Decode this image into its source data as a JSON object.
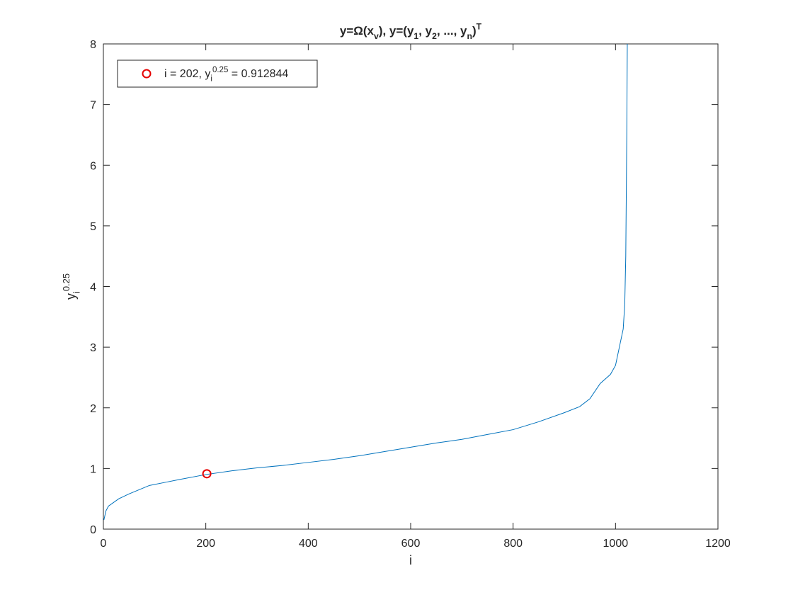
{
  "chart_data": {
    "type": "line",
    "title": [
      {
        "text": "y=Ω(x"
      },
      {
        "text": "v",
        "script": "sub"
      },
      {
        "text": "), y=(y"
      },
      {
        "text": "1",
        "script": "sub"
      },
      {
        "text": ", y"
      },
      {
        "text": "2",
        "script": "sub"
      },
      {
        "text": ", ..., y"
      },
      {
        "text": "n",
        "script": "sub"
      },
      {
        "text": ")"
      },
      {
        "text": "T",
        "script": "sup"
      }
    ],
    "x_label": [
      {
        "text": "i"
      }
    ],
    "y_label": [
      {
        "text": "y"
      },
      {
        "text": "i",
        "script": "sub"
      },
      {
        "text": "0.25",
        "script": "sup"
      }
    ],
    "xlim": [
      0,
      1200
    ],
    "ylim": [
      0,
      8
    ],
    "xticks": [
      0,
      200,
      400,
      600,
      800,
      1000,
      1200
    ],
    "yticks": [
      0,
      1,
      2,
      3,
      4,
      5,
      6,
      7,
      8
    ],
    "legend": "upper left",
    "series": [
      {
        "color": "#0072bd",
        "x": [
          1,
          5,
          10,
          20,
          30,
          50,
          70,
          90,
          120,
          150,
          200,
          250,
          300,
          350,
          400,
          450,
          500,
          550,
          600,
          650,
          700,
          750,
          800,
          850,
          900,
          930,
          950,
          970,
          990,
          1000,
          1005,
          1010,
          1015,
          1018,
          1020,
          1021,
          1022,
          1023
        ],
        "values": [
          0.15,
          0.3,
          0.38,
          0.44,
          0.5,
          0.58,
          0.65,
          0.72,
          0.77,
          0.82,
          0.9,
          0.96,
          1.01,
          1.05,
          1.1,
          1.15,
          1.21,
          1.28,
          1.35,
          1.42,
          1.48,
          1.56,
          1.64,
          1.77,
          1.92,
          2.02,
          2.15,
          2.4,
          2.55,
          2.7,
          2.9,
          3.1,
          3.3,
          3.7,
          4.5,
          5.5,
          6.5,
          8
        ]
      },
      {
        "name": [
          {
            "text": "i = 202, y"
          },
          {
            "text": "i",
            "script": "sub"
          },
          {
            "text": "0.25",
            "script": "sup"
          },
          {
            "text": " = 0.912844"
          }
        ],
        "color": "#e50000",
        "marker": "circle",
        "x": [
          202
        ],
        "values": [
          0.912844
        ]
      }
    ]
  }
}
